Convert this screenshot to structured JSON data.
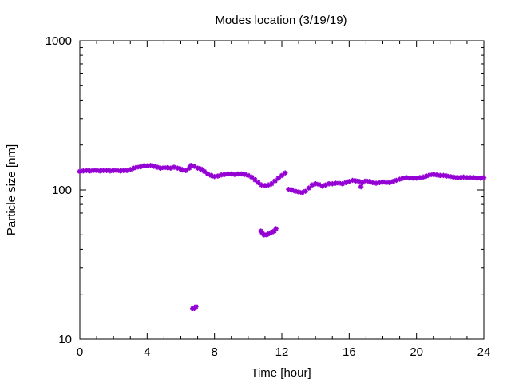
{
  "chart_data": {
    "type": "scatter",
    "title": "Modes location (3/19/19)",
    "xlabel": "Time [hour]",
    "ylabel": "Particle size [nm]",
    "xlim": [
      0,
      24
    ],
    "ylim": [
      10,
      1000
    ],
    "yscale": "log",
    "grid": false,
    "legend": "none",
    "marker": "star",
    "color": "#9400d3",
    "x_ticks": [
      0,
      4,
      8,
      12,
      16,
      20,
      24
    ],
    "x_tick_labels": [
      "0",
      "4",
      "8",
      "12",
      "16",
      "20",
      "24"
    ],
    "y_ticks": [
      10,
      100,
      1000
    ],
    "y_tick_labels": [
      "10",
      "100",
      "1000"
    ],
    "series": [
      {
        "name": "",
        "points": [
          [
            0.0,
            133
          ],
          [
            0.2,
            134
          ],
          [
            0.4,
            135
          ],
          [
            0.6,
            134
          ],
          [
            0.8,
            135
          ],
          [
            1.0,
            135
          ],
          [
            1.2,
            134
          ],
          [
            1.4,
            135
          ],
          [
            1.6,
            135
          ],
          [
            1.8,
            134
          ],
          [
            2.0,
            135
          ],
          [
            2.2,
            135
          ],
          [
            2.4,
            134
          ],
          [
            2.6,
            135
          ],
          [
            2.8,
            135
          ],
          [
            3.0,
            137
          ],
          [
            3.2,
            140
          ],
          [
            3.4,
            142
          ],
          [
            3.6,
            143
          ],
          [
            3.8,
            145
          ],
          [
            4.0,
            145
          ],
          [
            4.2,
            146
          ],
          [
            4.4,
            144
          ],
          [
            4.6,
            142
          ],
          [
            4.8,
            140
          ],
          [
            5.0,
            141
          ],
          [
            5.2,
            141
          ],
          [
            5.4,
            140
          ],
          [
            5.6,
            142
          ],
          [
            5.8,
            140
          ],
          [
            6.0,
            138
          ],
          [
            6.1,
            136
          ],
          [
            6.3,
            135
          ],
          [
            6.5,
            140
          ],
          [
            6.6,
            146
          ],
          [
            6.8,
            144
          ],
          [
            7.0,
            140
          ],
          [
            7.2,
            138
          ],
          [
            7.4,
            133
          ],
          [
            7.6,
            128
          ],
          [
            7.8,
            125
          ],
          [
            8.0,
            123
          ],
          [
            8.2,
            124
          ],
          [
            8.4,
            126
          ],
          [
            8.6,
            127
          ],
          [
            8.8,
            128
          ],
          [
            9.0,
            128
          ],
          [
            9.2,
            127
          ],
          [
            9.4,
            128
          ],
          [
            9.6,
            128
          ],
          [
            9.8,
            127
          ],
          [
            10.0,
            125
          ],
          [
            10.2,
            122
          ],
          [
            10.4,
            117
          ],
          [
            10.6,
            112
          ],
          [
            10.8,
            108
          ],
          [
            11.0,
            107
          ],
          [
            11.2,
            108
          ],
          [
            11.4,
            110
          ],
          [
            11.6,
            115
          ],
          [
            11.8,
            120
          ],
          [
            12.0,
            125
          ],
          [
            12.2,
            130
          ],
          [
            12.4,
            101
          ],
          [
            12.6,
            100
          ],
          [
            12.8,
            98
          ],
          [
            13.0,
            97
          ],
          [
            13.2,
            96
          ],
          [
            13.4,
            98
          ],
          [
            13.6,
            103
          ],
          [
            13.8,
            108
          ],
          [
            14.0,
            110
          ],
          [
            14.2,
            109
          ],
          [
            14.4,
            106
          ],
          [
            14.6,
            108
          ],
          [
            14.8,
            110
          ],
          [
            15.0,
            110
          ],
          [
            15.2,
            111
          ],
          [
            15.4,
            111
          ],
          [
            15.6,
            110
          ],
          [
            15.8,
            112
          ],
          [
            16.0,
            114
          ],
          [
            16.2,
            116
          ],
          [
            16.4,
            115
          ],
          [
            16.6,
            114
          ],
          [
            16.7,
            105
          ],
          [
            16.8,
            112
          ],
          [
            17.0,
            115
          ],
          [
            17.2,
            114
          ],
          [
            17.4,
            112
          ],
          [
            17.6,
            111
          ],
          [
            17.8,
            112
          ],
          [
            18.0,
            113
          ],
          [
            18.2,
            112
          ],
          [
            18.4,
            112
          ],
          [
            18.6,
            114
          ],
          [
            18.8,
            116
          ],
          [
            19.0,
            118
          ],
          [
            19.2,
            120
          ],
          [
            19.4,
            121
          ],
          [
            19.6,
            120
          ],
          [
            19.8,
            120
          ],
          [
            20.0,
            120
          ],
          [
            20.2,
            121
          ],
          [
            20.4,
            122
          ],
          [
            20.6,
            124
          ],
          [
            20.8,
            126
          ],
          [
            21.0,
            127
          ],
          [
            21.2,
            126
          ],
          [
            21.4,
            125
          ],
          [
            21.6,
            125
          ],
          [
            21.8,
            124
          ],
          [
            22.0,
            123
          ],
          [
            22.2,
            122
          ],
          [
            22.4,
            121
          ],
          [
            22.6,
            121
          ],
          [
            22.8,
            122
          ],
          [
            23.0,
            121
          ],
          [
            23.2,
            121
          ],
          [
            23.4,
            121
          ],
          [
            23.6,
            120
          ],
          [
            23.8,
            120
          ],
          [
            24.0,
            121
          ],
          [
            10.75,
            53
          ],
          [
            10.85,
            51
          ],
          [
            10.95,
            50
          ],
          [
            11.1,
            50
          ],
          [
            11.25,
            51
          ],
          [
            11.4,
            52
          ],
          [
            11.55,
            53
          ],
          [
            11.65,
            55
          ],
          [
            6.7,
            16
          ],
          [
            6.8,
            16
          ],
          [
            6.9,
            16.5
          ]
        ]
      }
    ]
  }
}
